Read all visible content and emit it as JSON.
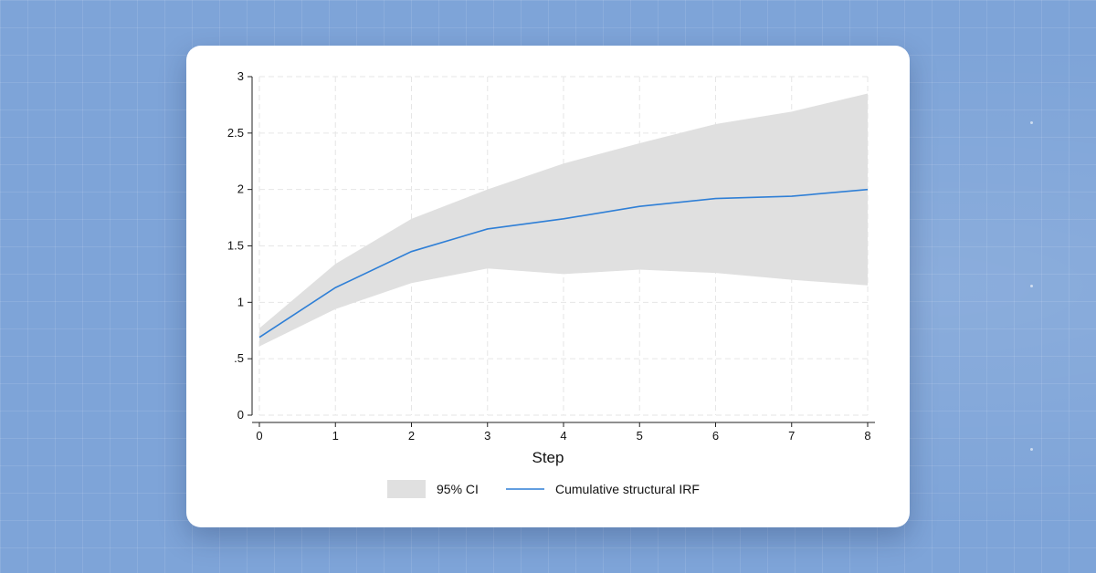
{
  "chart_data": {
    "type": "line",
    "xlabel": "Step",
    "ylabel": "",
    "xlim": [
      0,
      8
    ],
    "ylim": [
      0,
      3
    ],
    "x_ticks": [
      "0",
      "1",
      "2",
      "3",
      "4",
      "5",
      "6",
      "7",
      "8"
    ],
    "y_ticks": [
      {
        "value": 0,
        "label": "0"
      },
      {
        "value": 0.5,
        "label": ".5"
      },
      {
        "value": 1,
        "label": "1"
      },
      {
        "value": 1.5,
        "label": "1.5"
      },
      {
        "value": 2,
        "label": "2"
      },
      {
        "value": 2.5,
        "label": "2.5"
      },
      {
        "value": 3,
        "label": "3"
      }
    ],
    "grid": true,
    "legend_position": "bottom",
    "series": [
      {
        "name": "95% CI",
        "kind": "band",
        "color": "#e0e0e0",
        "x": [
          0,
          1,
          2,
          3,
          4,
          5,
          6,
          7,
          8
        ],
        "lower": [
          0.61,
          0.94,
          1.17,
          1.3,
          1.25,
          1.29,
          1.26,
          1.2,
          1.15
        ],
        "upper": [
          0.77,
          1.34,
          1.74,
          2.0,
          2.23,
          2.41,
          2.58,
          2.69,
          2.85
        ]
      },
      {
        "name": "Cumulative structural IRF",
        "kind": "line",
        "color": "#2f7fd6",
        "x": [
          0,
          1,
          2,
          3,
          4,
          5,
          6,
          7,
          8
        ],
        "values": [
          0.69,
          1.13,
          1.45,
          1.65,
          1.74,
          1.85,
          1.92,
          1.94,
          2.0
        ]
      }
    ]
  }
}
